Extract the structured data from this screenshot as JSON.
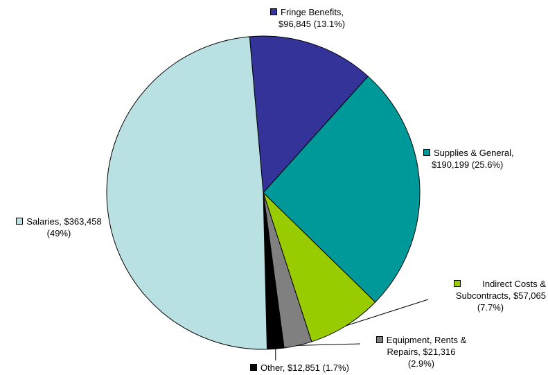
{
  "chart_data": {
    "type": "pie",
    "title": "",
    "slices": [
      {
        "name": "Fringe Benefits",
        "value": 96845,
        "percent": 13.1,
        "color": "#333399",
        "label_lines": [
          "Fringe Benefits,",
          "$96,845 (13.1%)"
        ]
      },
      {
        "name": "Supplies & General",
        "value": 190199,
        "percent": 25.6,
        "color": "#009999",
        "label_lines": [
          "Supplies & General,",
          "$190,199 (25.6%)"
        ]
      },
      {
        "name": "Indirect Costs & Subcontracts",
        "value": 57065,
        "percent": 7.7,
        "color": "#99CC00",
        "label_lines": [
          "Indirect Costs &",
          "Subcontracts, $57,065",
          "(7.7%)"
        ]
      },
      {
        "name": "Equipment, Rents & Repairs",
        "value": 21316,
        "percent": 2.9,
        "color": "#808080",
        "label_lines": [
          "Equipment, Rents &",
          "Repairs, $21,316",
          "(2.9%)"
        ]
      },
      {
        "name": "Other",
        "value": 12851,
        "percent": 1.7,
        "color": "#000000",
        "label_lines": [
          "Other, $12,851 (1.7%)"
        ]
      },
      {
        "name": "Salaries",
        "value": 363458,
        "percent": 49,
        "color": "#B9E0E3",
        "label_lines": [
          "Salaries, $363,458",
          "(49%)"
        ]
      }
    ],
    "legend": "none (data labels with leader lines)",
    "start_angle_deg": -5.0,
    "direction": "clockwise"
  }
}
